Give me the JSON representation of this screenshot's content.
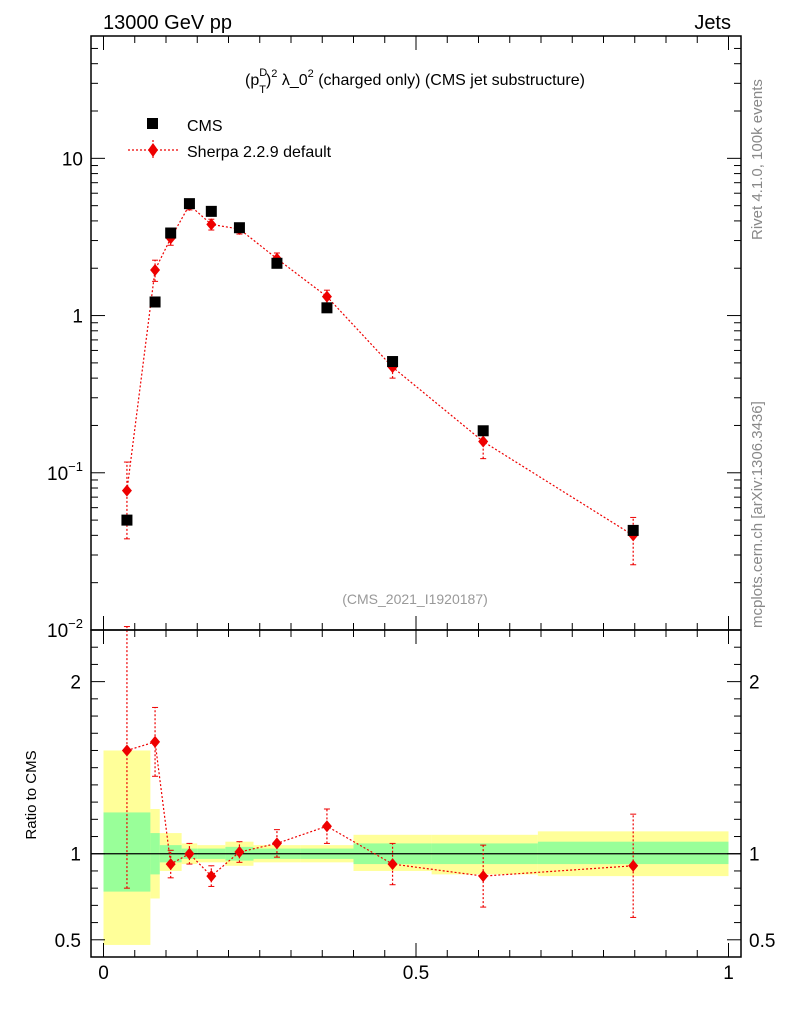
{
  "header": {
    "energy_label": "13000 GeV pp",
    "process_label": "Jets"
  },
  "side_labels": {
    "rivet": "Rivet 4.1.0,  100k events",
    "site": "mcplots.cern.ch [arXiv:1306.3436]"
  },
  "colors": {
    "mc": "#ee0000",
    "data": "#000000",
    "band_inner": "#99ff99",
    "band_outer": "#ffff99"
  },
  "chart_data": [
    {
      "type": "scatter",
      "panel": "main",
      "title_base": "(p",
      "title_sup1": "D",
      "title_sub": "T",
      "title_sup2": "2",
      "title_mid": " λ_0",
      "title_sup3": "2",
      "title_rest": " (charged only) (CMS jet substructure)",
      "analysis_id": "(CMS_2021_I1920187)",
      "ylog": true,
      "ylim": [
        0.01,
        60
      ],
      "xlim": [
        -0.02,
        1.02
      ],
      "ytick_majors": [
        0.01,
        0.1,
        1,
        10
      ],
      "ytick_labels": [
        {
          "base": "10",
          "exp": "−2"
        },
        {
          "base": "10",
          "exp": "−1"
        },
        {
          "base": "1",
          "exp": ""
        },
        {
          "base": "10",
          "exp": ""
        }
      ],
      "legend": {
        "data_label": "CMS",
        "mc_label": "Sherpa 2.2.9 default",
        "position": "top-left"
      },
      "data": {
        "name": "CMS",
        "x": [
          0.0375,
          0.0825,
          0.1075,
          0.1375,
          0.1725,
          0.2175,
          0.2775,
          0.3575,
          0.4625,
          0.6075,
          0.8475
        ],
        "y": [
          0.05,
          1.22,
          3.35,
          5.15,
          4.6,
          3.62,
          2.15,
          1.12,
          0.51,
          0.185,
          0.043
        ],
        "xerr": [
          0.0375,
          0.0075,
          0.0075,
          0.0125,
          0.0125,
          0.0175,
          0.0275,
          0.0425,
          0.0625,
          0.0875,
          0.1525
        ]
      },
      "mc": {
        "name": "Sherpa 2.2.9 default",
        "x": [
          0.0375,
          0.0825,
          0.1075,
          0.1375,
          0.1725,
          0.2175,
          0.2775,
          0.3575,
          0.4625,
          0.6075,
          0.8475
        ],
        "y": [
          0.077,
          1.95,
          3.1,
          5.05,
          3.8,
          3.55,
          2.3,
          1.32,
          0.47,
          0.158,
          0.04
        ],
        "yerr_lo": [
          0.039,
          0.3,
          0.3,
          0.35,
          0.3,
          0.25,
          0.2,
          0.13,
          0.07,
          0.035,
          0.014
        ],
        "yerr_hi": [
          0.04,
          0.3,
          0.3,
          0.35,
          0.3,
          0.25,
          0.2,
          0.13,
          0.07,
          0.035,
          0.012
        ]
      }
    },
    {
      "type": "scatter",
      "panel": "ratio",
      "ylabel": "Ratio to CMS",
      "ylim": [
        0.4,
        2.3
      ],
      "xlim": [
        -0.02,
        1.02
      ],
      "yticks": [
        0.5,
        1,
        2
      ],
      "ytick_labels": [
        "0.5",
        "1",
        "2"
      ],
      "xticks": [
        0,
        0.5,
        1
      ],
      "xtick_labels": [
        "0",
        "0.5",
        "1"
      ],
      "bands": {
        "bin_edges": [
          0,
          0.075,
          0.09,
          0.125,
          0.15,
          0.195,
          0.24,
          0.315,
          0.4,
          0.525,
          0.695,
          1.0
        ],
        "inner_lo": [
          0.78,
          0.88,
          0.95,
          0.97,
          0.97,
          0.96,
          0.97,
          0.97,
          0.94,
          0.94,
          0.94
        ],
        "inner_hi": [
          1.24,
          1.12,
          1.05,
          1.03,
          1.03,
          1.04,
          1.03,
          1.03,
          1.06,
          1.06,
          1.07
        ],
        "outer_lo": [
          0.47,
          0.74,
          0.9,
          0.94,
          0.95,
          0.93,
          0.95,
          0.95,
          0.9,
          0.88,
          0.87
        ],
        "outer_hi": [
          1.6,
          1.26,
          1.12,
          1.06,
          1.05,
          1.07,
          1.05,
          1.05,
          1.11,
          1.11,
          1.13
        ]
      },
      "mc": {
        "x": [
          0.0375,
          0.0825,
          0.1075,
          0.1375,
          0.1725,
          0.2175,
          0.2775,
          0.3575,
          0.4625,
          0.6075,
          0.8475
        ],
        "ratio": [
          1.6,
          1.65,
          0.94,
          1.0,
          0.87,
          1.01,
          1.06,
          1.16,
          0.94,
          0.87,
          0.93
        ],
        "err_lo": [
          0.8,
          0.2,
          0.08,
          0.06,
          0.06,
          0.06,
          0.08,
          0.1,
          0.12,
          0.18,
          0.3
        ],
        "err_hi": [
          0.72,
          0.2,
          0.08,
          0.06,
          0.06,
          0.06,
          0.08,
          0.1,
          0.12,
          0.18,
          0.3
        ]
      }
    }
  ]
}
